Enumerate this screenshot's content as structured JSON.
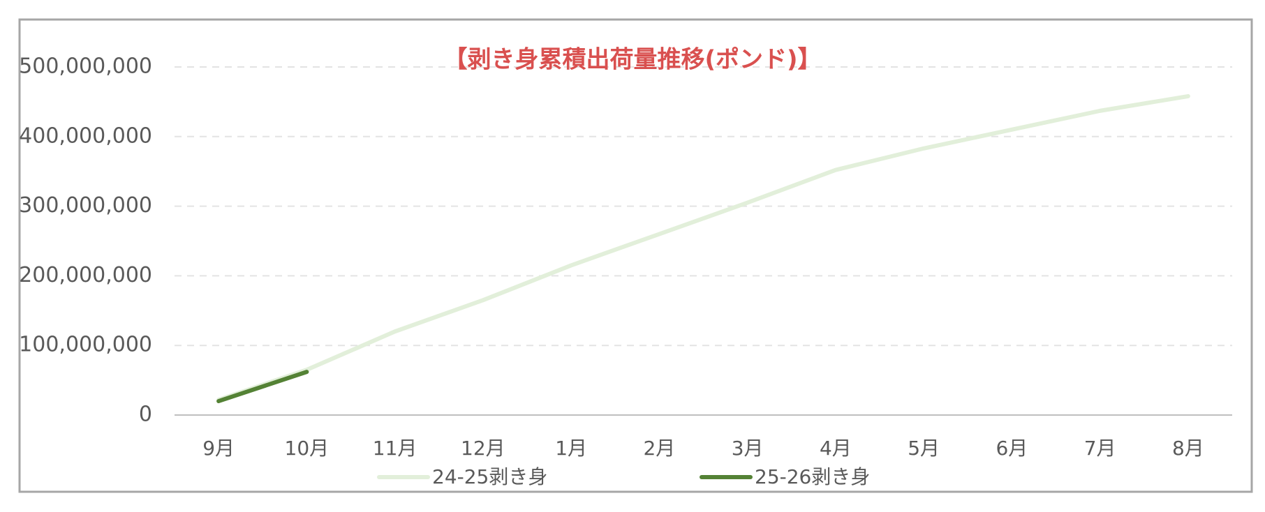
{
  "chart_data": {
    "type": "line",
    "title": "【剥き身累積出荷量推移(ポンド)】",
    "categories": [
      "9月",
      "10月",
      "11月",
      "12月",
      "1月",
      "2月",
      "3月",
      "4月",
      "5月",
      "6月",
      "7月",
      "8月"
    ],
    "series": [
      {
        "name": "24-25剥き身",
        "color": "#e2efda",
        "values": [
          22000000,
          65000000,
          120000000,
          165000000,
          215000000,
          260000000,
          305000000,
          352000000,
          383000000,
          410000000,
          437000000,
          458000000
        ]
      },
      {
        "name": "25-26剥き身",
        "color": "#548235",
        "values": [
          20000000,
          62000000,
          null,
          null,
          null,
          null,
          null,
          null,
          null,
          null,
          null,
          null
        ]
      }
    ],
    "ylim": [
      0,
      500000000
    ],
    "yticks": [
      0,
      {
        "value": 100000000,
        "label": "100,000,000"
      },
      {
        "value": 200000000,
        "label": "200,000,000"
      },
      {
        "value": 300000000,
        "label": "300,000,000"
      },
      {
        "value": 400000000,
        "label": "400,000,000"
      },
      {
        "value": 500000000,
        "label": "500,000,000"
      }
    ],
    "grid": true,
    "legend": "bottom"
  }
}
